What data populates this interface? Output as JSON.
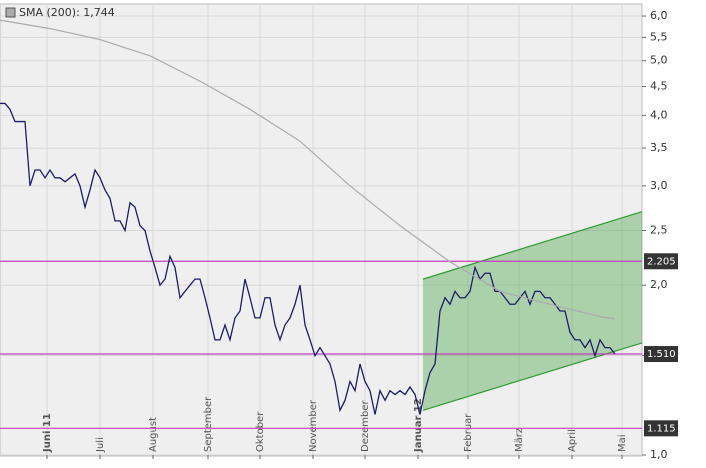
{
  "chart_data": {
    "type": "line",
    "log_scale": true,
    "grid": true,
    "xlim": [
      0,
      128.4
    ],
    "xticks": [
      {
        "value": 9.4,
        "label": "Juni 11"
      },
      {
        "value": 20,
        "label": "Juli"
      },
      {
        "value": 30.6,
        "label": "August"
      },
      {
        "value": 41.6,
        "label": "September"
      },
      {
        "value": 52,
        "label": "Oktober"
      },
      {
        "value": 62.6,
        "label": "November"
      },
      {
        "value": 73,
        "label": "Dezember"
      },
      {
        "value": 83.6,
        "label": "Januar 12"
      },
      {
        "value": 93.6,
        "label": "Februar"
      },
      {
        "value": 103.8,
        "label": "März"
      },
      {
        "value": 114.4,
        "label": "April"
      },
      {
        "value": 124.4,
        "label": "Mai"
      }
    ],
    "ylim": [
      1.0,
      6.2
    ],
    "yticks": [
      {
        "value": 1.0,
        "label": "1,0"
      },
      {
        "value": 1.5,
        "label": "1,5"
      },
      {
        "value": 2.0,
        "label": "2,0"
      },
      {
        "value": 2.5,
        "label": "2,5"
      },
      {
        "value": 3.0,
        "label": "3,0"
      },
      {
        "value": 3.5,
        "label": "3,5"
      },
      {
        "value": 4.0,
        "label": "4,0"
      },
      {
        "value": 4.5,
        "label": "4,5"
      },
      {
        "value": 5.0,
        "label": "5,0"
      },
      {
        "value": 5.5,
        "label": "5,5"
      },
      {
        "value": 6.0,
        "label": "6,0"
      }
    ],
    "series": [
      {
        "color": "#1c1c6b",
        "values": [
          4.2,
          4.2,
          4.1,
          3.9,
          3.9,
          3.9,
          3.0,
          3.2,
          3.2,
          3.1,
          3.2,
          3.1,
          3.1,
          3.05,
          3.1,
          3.15,
          3.0,
          2.75,
          2.95,
          3.2,
          3.1,
          2.95,
          2.85,
          2.6,
          2.6,
          2.5,
          2.8,
          2.75,
          2.55,
          2.5,
          2.3,
          2.15,
          2.0,
          2.05,
          2.25,
          2.15,
          1.9,
          1.95,
          2.0,
          2.05,
          2.05,
          1.9,
          1.75,
          1.6,
          1.6,
          1.7,
          1.6,
          1.75,
          1.8,
          2.05,
          1.9,
          1.75,
          1.75,
          1.9,
          1.9,
          1.7,
          1.6,
          1.7,
          1.75,
          1.85,
          2.0,
          1.7,
          1.6,
          1.5,
          1.55,
          1.5,
          1.45,
          1.35,
          1.2,
          1.25,
          1.35,
          1.3,
          1.45,
          1.35,
          1.3,
          1.18,
          1.3,
          1.25,
          1.3,
          1.28,
          1.3,
          1.28,
          1.32,
          1.28,
          1.18,
          1.3,
          1.4,
          1.45,
          1.8,
          1.9,
          1.85,
          1.95,
          1.9,
          1.9,
          1.95,
          2.15,
          2.05,
          2.1,
          2.1,
          1.95,
          1.95,
          1.9,
          1.85,
          1.85,
          1.9,
          1.95,
          1.85,
          1.95,
          1.95,
          1.9,
          1.9,
          1.85,
          1.8,
          1.8,
          1.65,
          1.6,
          1.6,
          1.55,
          1.6,
          1.5,
          1.6,
          1.55,
          1.55,
          1.51
        ]
      },
      {
        "name": "SMA (200): 1,744",
        "color": "#aaaaaa",
        "x": [
          0,
          10,
          20,
          30,
          40,
          50,
          60,
          70,
          80,
          90,
          100,
          110,
          120,
          123
        ],
        "values": [
          5.9,
          5.7,
          5.45,
          5.1,
          4.6,
          4.1,
          3.6,
          3.0,
          2.55,
          2.2,
          1.95,
          1.85,
          1.76,
          1.744
        ]
      }
    ],
    "channel": {
      "x": [
        84.6,
        128.4
      ],
      "upper": [
        2.05,
        2.7
      ],
      "lower": [
        1.2,
        1.58
      ],
      "color": "#2f9a2f"
    },
    "levels": [
      {
        "value": 2.205,
        "label": "2.205"
      },
      {
        "value": 1.51,
        "label": "1.510"
      },
      {
        "value": 1.115,
        "label": "1.115"
      }
    ],
    "level_color": "#c040c0"
  }
}
